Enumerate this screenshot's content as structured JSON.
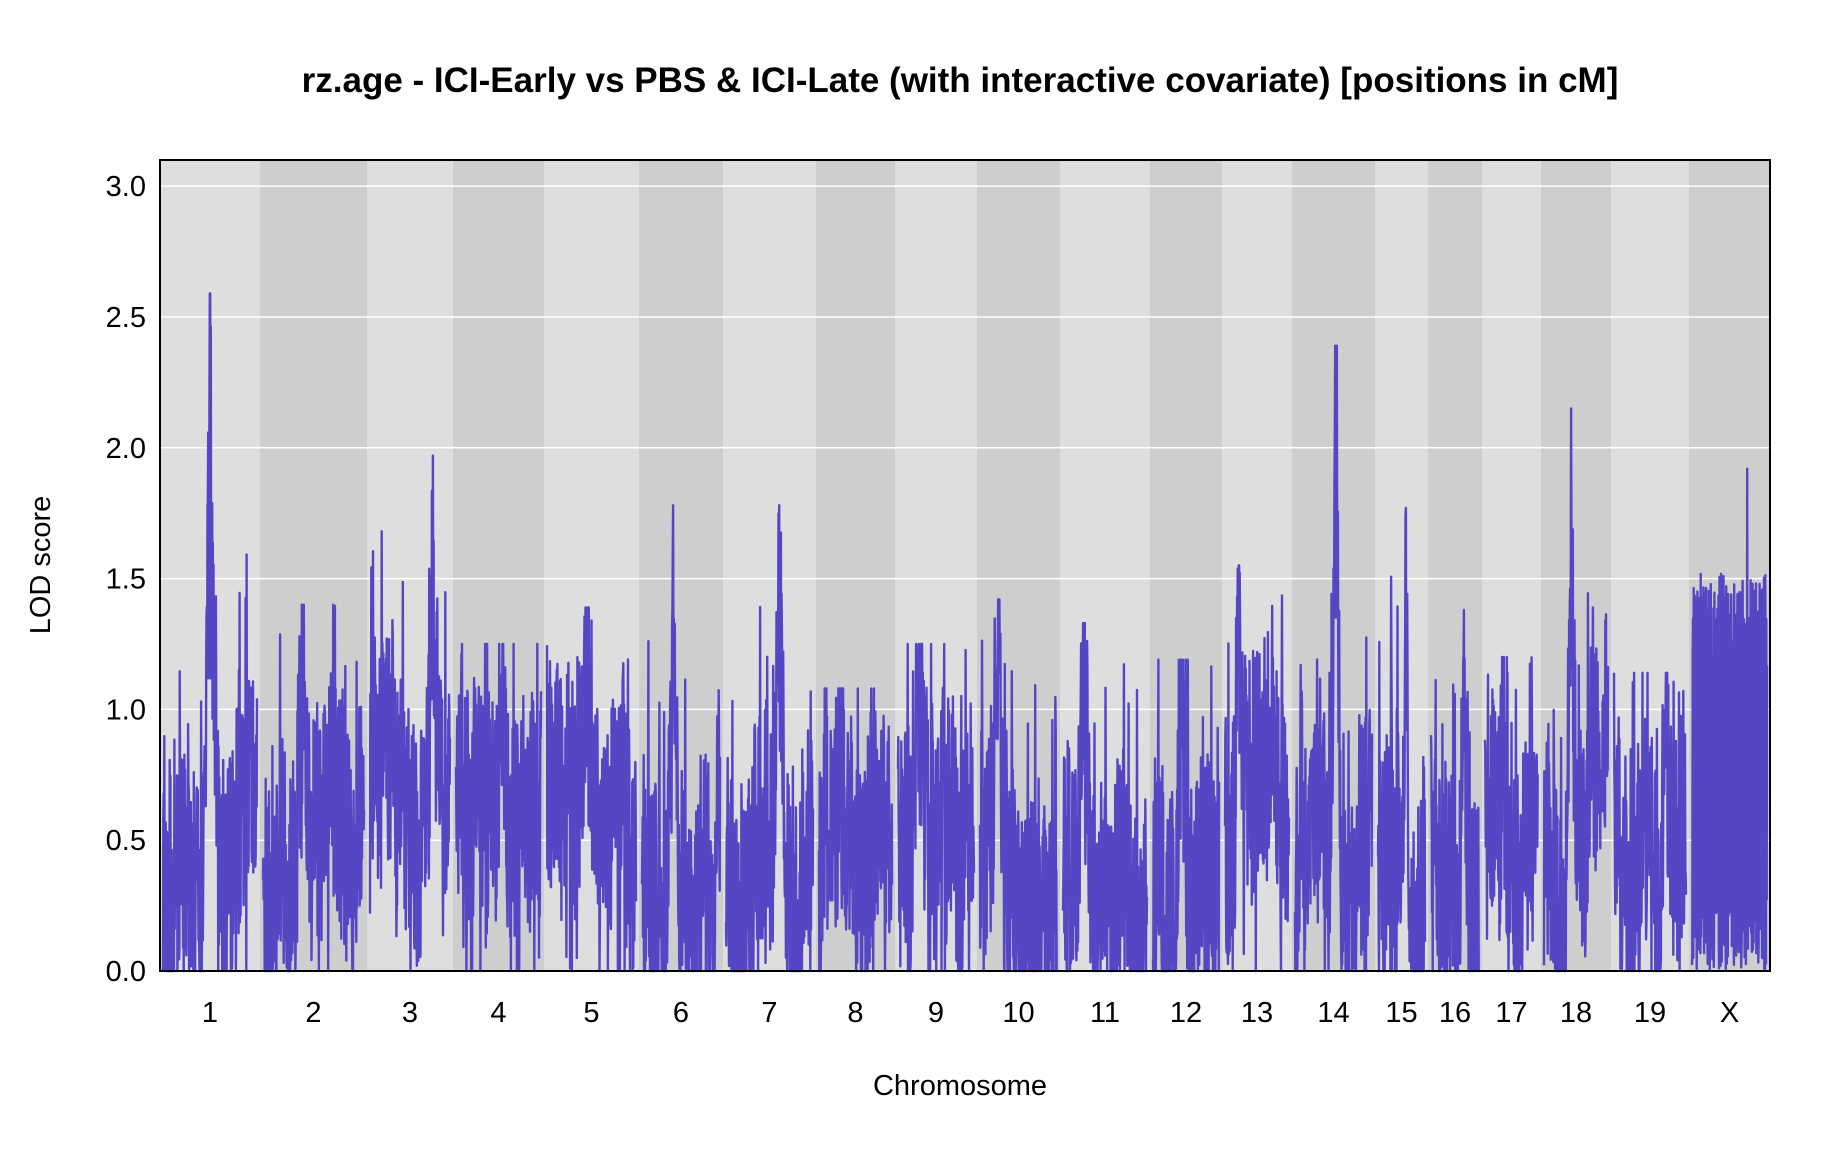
{
  "chart_data": {
    "type": "line",
    "title": "rz.age - ICI-Early vs PBS & ICI-Late (with interactive covariate) [positions in cM]",
    "xlabel": "Chromosome",
    "ylabel": "LOD score",
    "ylim": [
      0,
      3.1
    ],
    "yticks": [
      "0.0",
      "0.5",
      "1.0",
      "1.5",
      "2.0",
      "2.5",
      "3.0"
    ],
    "grid": "horizontal",
    "line_color": "#5546c4",
    "band_colors": [
      "#dedede",
      "#cecece"
    ],
    "chromosomes": [
      "1",
      "2",
      "3",
      "4",
      "5",
      "6",
      "7",
      "8",
      "9",
      "10",
      "11",
      "12",
      "13",
      "14",
      "15",
      "16",
      "17",
      "18",
      "19",
      "X"
    ],
    "peaks": [
      {
        "chromosome": "1",
        "max_lod": 2.59
      },
      {
        "chromosome": "2",
        "max_lod": 1.4
      },
      {
        "chromosome": "3",
        "max_lod": 1.97
      },
      {
        "chromosome": "4",
        "max_lod": 1.25
      },
      {
        "chromosome": "5",
        "max_lod": 1.39
      },
      {
        "chromosome": "6",
        "max_lod": 1.78
      },
      {
        "chromosome": "7",
        "max_lod": 1.78
      },
      {
        "chromosome": "8",
        "max_lod": 1.08
      },
      {
        "chromosome": "9",
        "max_lod": 1.25
      },
      {
        "chromosome": "10",
        "max_lod": 1.42
      },
      {
        "chromosome": "11",
        "max_lod": 1.33
      },
      {
        "chromosome": "12",
        "max_lod": 1.19
      },
      {
        "chromosome": "13",
        "max_lod": 1.55
      },
      {
        "chromosome": "14",
        "max_lod": 2.39
      },
      {
        "chromosome": "15",
        "max_lod": 1.77
      },
      {
        "chromosome": "16",
        "max_lod": 1.38
      },
      {
        "chromosome": "17",
        "max_lod": 1.2
      },
      {
        "chromosome": "18",
        "max_lod": 2.15
      },
      {
        "chromosome": "19",
        "max_lod": 1.14
      },
      {
        "chromosome": "X",
        "max_lod": 1.92
      }
    ]
  }
}
